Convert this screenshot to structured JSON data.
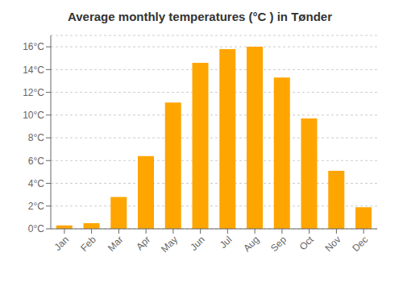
{
  "chart_data": {
    "type": "bar",
    "title": "Average monthly temperatures (°C ) in Tønder",
    "categories": [
      "Jan",
      "Feb",
      "Mar",
      "Apr",
      "May",
      "Jun",
      "Jul",
      "Aug",
      "Sep",
      "Oct",
      "Nov",
      "Dec"
    ],
    "values": [
      0.3,
      0.5,
      2.8,
      6.4,
      11.1,
      14.6,
      15.8,
      16.0,
      13.3,
      9.7,
      5.1,
      1.9
    ],
    "color": "#FFA500",
    "ylim": [
      0,
      17
    ],
    "yticks": [
      {
        "value": 0,
        "label": "0°C"
      },
      {
        "value": 2,
        "label": "2°C"
      },
      {
        "value": 4,
        "label": "4°C"
      },
      {
        "value": 6,
        "label": "6°C"
      },
      {
        "value": 8,
        "label": "8°C"
      },
      {
        "value": 10,
        "label": "10°C"
      },
      {
        "value": 12,
        "label": "12°C"
      },
      {
        "value": 14,
        "label": "14°C"
      },
      {
        "value": 16,
        "label": "16°C"
      }
    ],
    "grid": true
  }
}
